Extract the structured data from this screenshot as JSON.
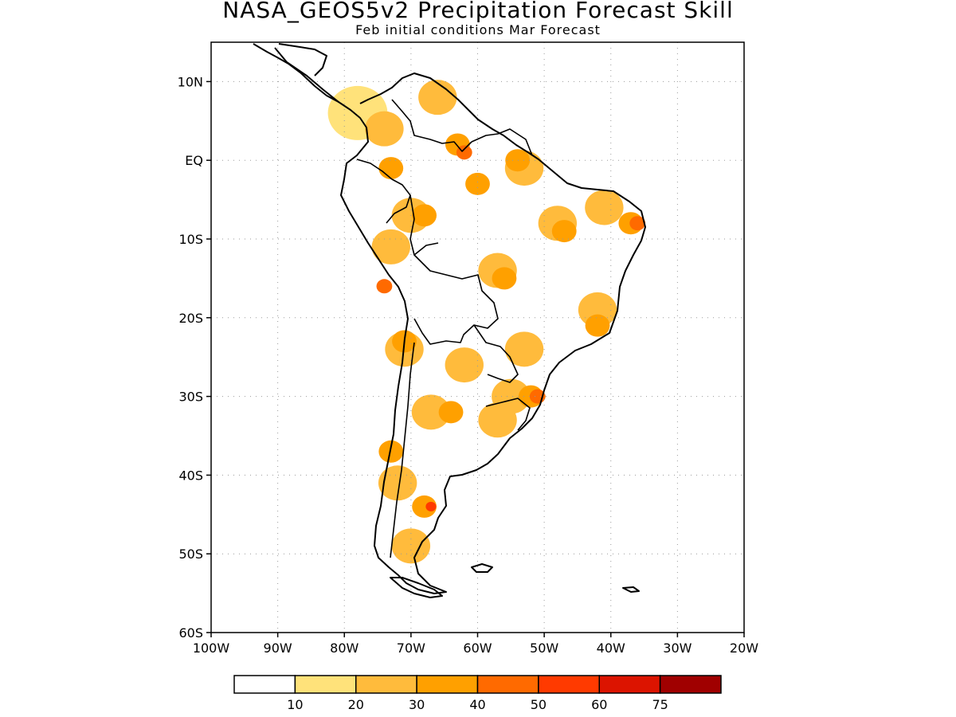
{
  "figure": {
    "title": "NASA_GEOS5v2 Precipitation Forecast Skill",
    "subtitle": "Feb initial conditions  Mar Forecast"
  },
  "map": {
    "lon_range": [
      -100,
      -20
    ],
    "lat_range": [
      -60,
      15
    ],
    "lat_ticks": [
      {
        "value": 10,
        "label": "10N"
      },
      {
        "value": 0,
        "label": "EQ"
      },
      {
        "value": -10,
        "label": "10S"
      },
      {
        "value": -20,
        "label": "20S"
      },
      {
        "value": -30,
        "label": "30S"
      },
      {
        "value": -40,
        "label": "40S"
      },
      {
        "value": -50,
        "label": "50S"
      },
      {
        "value": -60,
        "label": "60S"
      }
    ],
    "lon_ticks": [
      {
        "value": -100,
        "label": "100W"
      },
      {
        "value": -90,
        "label": "90W"
      },
      {
        "value": -80,
        "label": "80W"
      },
      {
        "value": -70,
        "label": "70W"
      },
      {
        "value": -60,
        "label": "60W"
      },
      {
        "value": -50,
        "label": "50W"
      },
      {
        "value": -40,
        "label": "40W"
      },
      {
        "value": -30,
        "label": "30W"
      },
      {
        "value": -20,
        "label": "20W"
      }
    ],
    "grid": "dotted"
  },
  "colorbar": {
    "colors": [
      "#ffffff",
      "#ffe27a",
      "#ffbb3c",
      "#ffa000",
      "#ff6a00",
      "#ff3a00",
      "#dc1400",
      "#a00000"
    ],
    "labels": [
      "10",
      "20",
      "30",
      "40",
      "50",
      "60",
      "75"
    ]
  },
  "skill_regions": [
    {
      "level": 1,
      "lon": -78,
      "lat": 6
    },
    {
      "level": 2,
      "lon": -74,
      "lat": 4
    },
    {
      "level": 3,
      "lon": -73,
      "lat": -1
    },
    {
      "level": 2,
      "lon": -66,
      "lat": 8
    },
    {
      "level": 3,
      "lon": -63,
      "lat": 2
    },
    {
      "level": 4,
      "lon": -62,
      "lat": 1
    },
    {
      "level": 3,
      "lon": -60,
      "lat": -3
    },
    {
      "level": 2,
      "lon": -53,
      "lat": -1
    },
    {
      "level": 3,
      "lon": -54,
      "lat": 0
    },
    {
      "level": 2,
      "lon": -48,
      "lat": -8
    },
    {
      "level": 3,
      "lon": -47,
      "lat": -9
    },
    {
      "level": 2,
      "lon": -41,
      "lat": -6
    },
    {
      "level": 3,
      "lon": -37,
      "lat": -8
    },
    {
      "level": 4,
      "lon": -36,
      "lat": -8
    },
    {
      "level": 2,
      "lon": -70,
      "lat": -7
    },
    {
      "level": 3,
      "lon": -68,
      "lat": -7
    },
    {
      "level": 2,
      "lon": -73,
      "lat": -11
    },
    {
      "level": 2,
      "lon": -57,
      "lat": -14
    },
    {
      "level": 3,
      "lon": -56,
      "lat": -15
    },
    {
      "level": 4,
      "lon": -74,
      "lat": -16
    },
    {
      "level": 2,
      "lon": -42,
      "lat": -19
    },
    {
      "level": 3,
      "lon": -42,
      "lat": -21
    },
    {
      "level": 2,
      "lon": -71,
      "lat": -24
    },
    {
      "level": 3,
      "lon": -71,
      "lat": -23
    },
    {
      "level": 2,
      "lon": -62,
      "lat": -26
    },
    {
      "level": 2,
      "lon": -53,
      "lat": -24
    },
    {
      "level": 2,
      "lon": -55,
      "lat": -30
    },
    {
      "level": 3,
      "lon": -52,
      "lat": -30
    },
    {
      "level": 4,
      "lon": -51,
      "lat": -30
    },
    {
      "level": 2,
      "lon": -67,
      "lat": -32
    },
    {
      "level": 3,
      "lon": -64,
      "lat": -32
    },
    {
      "level": 2,
      "lon": -57,
      "lat": -33
    },
    {
      "level": 3,
      "lon": -73,
      "lat": -37
    },
    {
      "level": 2,
      "lon": -72,
      "lat": -41
    },
    {
      "level": 3,
      "lon": -68,
      "lat": -44
    },
    {
      "level": 5,
      "lon": -67,
      "lat": -44
    },
    {
      "level": 2,
      "lon": -70,
      "lat": -49
    }
  ]
}
